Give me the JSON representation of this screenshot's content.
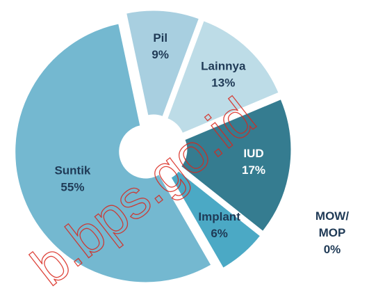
{
  "chart_data": {
    "type": "pie",
    "categories": [
      "Pil",
      "Lainnya",
      "IUD",
      "Implant",
      "MOW/\nMOP",
      "Suntik"
    ],
    "values": [
      9,
      13,
      17,
      6,
      0,
      55
    ],
    "value_labels": [
      "9%",
      "13%",
      "17%",
      "6%",
      "0%",
      "55%"
    ],
    "colors": [
      "#a8cfe0",
      "#bddce7",
      "#357c90",
      "#4ba9c5",
      "#2f6f86",
      "#74b8d0"
    ],
    "watermark": "b.bps.go.id"
  }
}
